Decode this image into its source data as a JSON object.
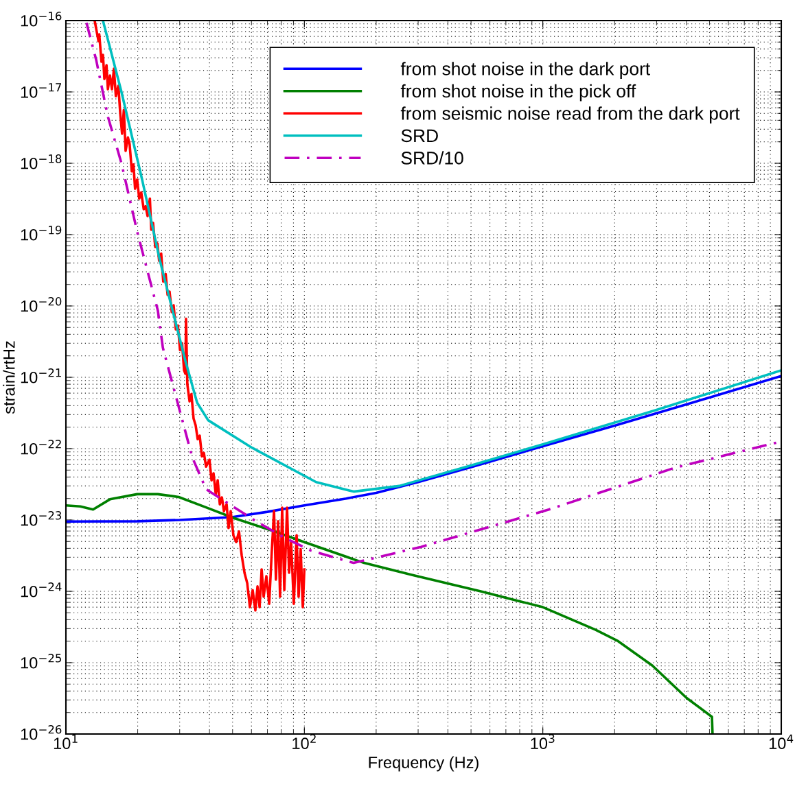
{
  "chart_data": {
    "type": "line",
    "xlabel": "Frequency (Hz)",
    "ylabel": "strain/rtHz",
    "log": "xy",
    "grid": true,
    "legend": "top right",
    "xlim": [
      10,
      10000
    ],
    "ylim": [
      1e-26,
      1e-16
    ],
    "xticks": [
      {
        "value": 10,
        "label": "10$^{1}$"
      },
      {
        "value": 100,
        "label": "10$^{2}$"
      },
      {
        "value": 1000,
        "label": "10$^{3}$"
      },
      {
        "value": 10000,
        "label": "10$^{4}$"
      }
    ],
    "yticks": [
      {
        "value": 1e-26,
        "label": "10$^{−26}$"
      },
      {
        "value": 1e-25,
        "label": "10$^{−25}$"
      },
      {
        "value": 1e-24,
        "label": "10$^{−24}$"
      },
      {
        "value": 1e-23,
        "label": "10$^{−23}$"
      },
      {
        "value": 1e-22,
        "label": "10$^{−22}$"
      },
      {
        "value": 1e-21,
        "label": "10$^{−21}$"
      },
      {
        "value": 1e-20,
        "label": "10$^{−20}$"
      },
      {
        "value": 1e-19,
        "label": "10$^{−19}$"
      },
      {
        "value": 1e-18,
        "label": "10$^{−18}$"
      },
      {
        "value": 1e-17,
        "label": "10$^{−17}$"
      },
      {
        "value": 1e-16,
        "label": "10$^{−16}$"
      }
    ],
    "series": [
      {
        "name": "from shot noise in the dark port",
        "color": "#0000ff",
        "x": [
          10,
          20,
          30,
          50,
          70,
          100,
          150,
          200,
          300,
          500,
          1000,
          2000,
          5000,
          10000
        ],
        "values": [
          9.5e-24,
          9.6e-24,
          1e-23,
          1.1e-23,
          1.3e-23,
          1.6e-23,
          2e-23,
          2.4e-23,
          3.4e-23,
          5.5e-23,
          1.08e-22,
          2.1e-22,
          5.2e-22,
          1.04e-21
        ]
      },
      {
        "name": "from shot noise in the pick off",
        "color": "#008000",
        "x": [
          10,
          11.5,
          13.0,
          15.3,
          19.9,
          24.3,
          29.7,
          38.7,
          50.4,
          75.0,
          100,
          178,
          282,
          549,
          1000,
          1660,
          2070,
          2880,
          4010,
          5120,
          5150
        ],
        "values": [
          1.6e-23,
          1.55e-23,
          1.4e-23,
          1.95e-23,
          2.3e-23,
          2.3e-23,
          2.1e-23,
          1.5e-23,
          1.07e-23,
          6.9e-24,
          4.9e-24,
          2.5e-24,
          1.7e-24,
          1e-24,
          6e-25,
          2.9e-25,
          2e-25,
          9.1e-26,
          3.2e-26,
          1.74e-26,
          1e-26
        ]
      },
      {
        "name": "from seismic noise read from the dark port",
        "color": "#ff0000",
        "x": [
          13.2,
          13.7,
          13.8,
          14.1,
          14.3,
          14.5,
          14.8,
          15.0,
          15.3,
          15.6,
          15.9,
          16.2,
          16.6,
          16.9,
          17.2,
          17.5,
          17.8,
          18.2,
          18.5,
          18.9,
          19.2,
          19.5,
          19.9,
          20.3,
          20.7,
          21.2,
          21.6,
          22.0,
          22.5,
          22.8,
          23.2,
          23.7,
          24.2,
          24.6,
          25.1,
          25.6,
          26.2,
          26.7,
          27.2,
          27.8,
          28.3,
          28.9,
          29.5,
          30.1,
          30.7,
          31.3,
          31.7,
          31.9,
          32.3,
          33.0,
          33.6,
          34.3,
          35.0,
          35.7,
          36.4,
          37.2,
          37.9,
          38.7,
          40.0,
          40.8,
          41.6,
          42.5,
          43.3,
          44.2,
          45.1,
          46.0,
          47.2,
          48.1,
          49.1,
          50.4,
          51.8,
          53.2,
          54.6,
          56.1,
          57.6,
          59.1,
          60.7,
          62.3,
          63.6,
          64.9,
          66.2,
          67.5,
          69.3,
          71.2,
          73.1,
          74.6,
          76.0,
          77.6,
          79.1,
          80.7,
          82.4,
          84.6,
          86.3,
          88.0,
          90.3,
          92.8,
          94.6,
          96.5,
          98.5,
          100
        ],
        "values": [
          1e-16,
          5.15e-17,
          6.4e-17,
          2.65e-17,
          3.3e-17,
          1.52e-17,
          2.37e-17,
          1.09e-17,
          1.7e-17,
          1.09e-17,
          2.12e-17,
          8.7e-18,
          1.22e-17,
          5e-18,
          2.6e-18,
          5.6e-18,
          1.49e-18,
          2.3e-18,
          1.86e-18,
          7.7e-19,
          9.6e-19,
          4.4e-19,
          5.9e-19,
          3.2e-19,
          3.9e-19,
          2.27e-19,
          2.5e-19,
          1.82e-19,
          3.2e-19,
          1.17e-19,
          1.46e-19,
          6.7e-20,
          7.5e-20,
          4.3e-20,
          5.4e-20,
          2.2e-20,
          2.8e-20,
          1.43e-20,
          1.59e-20,
          8.2e-21,
          1.02e-20,
          4.7e-21,
          5.3e-21,
          2.4e-21,
          3e-21,
          1.25e-21,
          1.12e-21,
          6.6e-21,
          8e-22,
          4.6e-22,
          5.8e-22,
          2.65e-22,
          2.12e-22,
          1.36e-22,
          1.52e-22,
          7.8e-23,
          8.7e-23,
          5.6e-23,
          7e-23,
          3.6e-23,
          4.5e-23,
          2.3e-23,
          3.6e-23,
          1.66e-23,
          2.07e-23,
          1.33e-23,
          1.66e-23,
          7.7e-24,
          1.33e-23,
          6.1e-24,
          4.9e-24,
          6.9e-24,
          3.2e-24,
          1.82e-24,
          1.3e-24,
          6e-25,
          1.04e-24,
          5.4e-25,
          1.17e-24,
          6e-25,
          2.03e-24,
          8.4e-25,
          1.63e-24,
          6.7e-25,
          3.9e-24,
          1.33e-23,
          1.46e-24,
          9.6e-24,
          8.4e-25,
          1.49e-23,
          1.04e-24,
          1.49e-23,
          1.82e-24,
          4.9e-24,
          6.7e-25,
          6.1e-24,
          8.4e-25,
          3.9e-24,
          6e-25,
          2.03e-24
        ]
      },
      {
        "name": "SRD",
        "color": "#00bfbf",
        "x": [
          14.3,
          17.1,
          20.9,
          24.8,
          31.7,
          35.5,
          39.5,
          60.3,
          112,
          161,
          250,
          500,
          1000,
          3000,
          10000
        ],
        "values": [
          1e-16,
          1e-17,
          5.8e-19,
          4.3e-20,
          1.7e-21,
          4.4e-22,
          2.5e-22,
          1.03e-22,
          3.4e-23,
          2.5e-23,
          3e-23,
          5.8e-23,
          1.15e-22,
          3.5e-22,
          1.25e-21
        ]
      },
      {
        "name": "SRD/10",
        "color": "#bf00bf",
        "line_style": "dashdot",
        "x": [
          12.2,
          13.4,
          15.0,
          17.1,
          19.9,
          24.3,
          25.5,
          29.7,
          33.9,
          38.7,
          48,
          62.7,
          82,
          107,
          161,
          309,
          1060,
          3580,
          10000
        ],
        "values": [
          9.3e-17,
          2.8e-17,
          4.5e-18,
          1e-18,
          1.1e-19,
          8.6e-21,
          2.6e-21,
          3.9e-22,
          7.5e-23,
          2.7e-23,
          1.7e-23,
          9.6e-24,
          5.7e-24,
          3.7e-24,
          2.5e-24,
          4.2e-24,
          1.4e-23,
          5.4e-23,
          1.26e-22
        ]
      }
    ]
  }
}
